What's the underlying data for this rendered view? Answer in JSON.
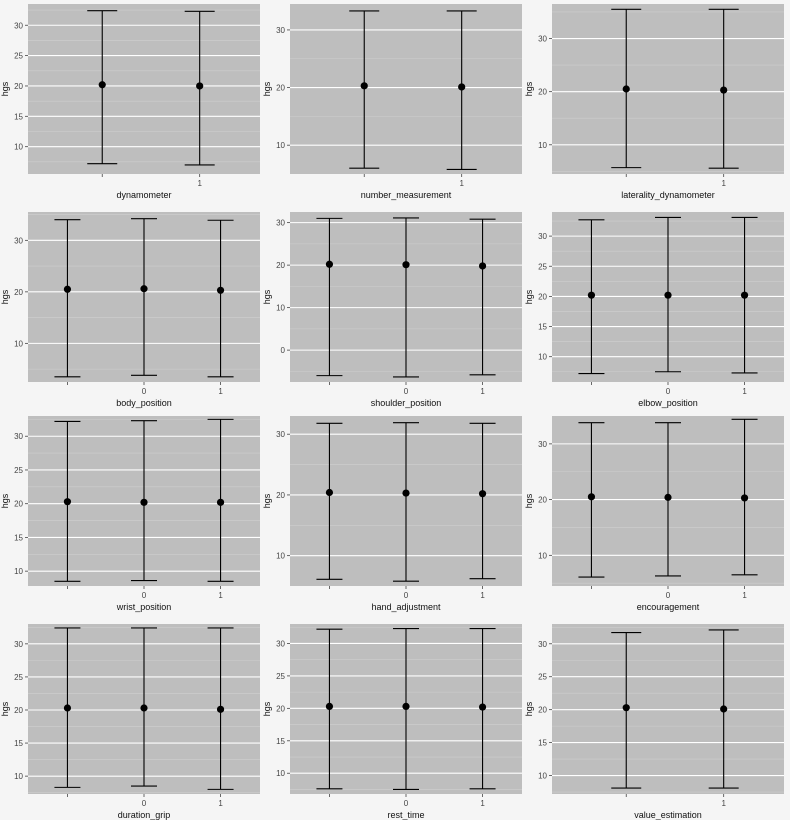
{
  "chart_data": [
    {
      "type": "errorbar",
      "xlabel": "dynamometer",
      "ylabel": "hgs",
      "categories": [
        "",
        "1"
      ],
      "ylim": [
        5.5,
        33.5
      ],
      "yticks": [
        "10",
        "15",
        "20",
        "25",
        "30"
      ],
      "means": [
        20.2,
        20.0
      ],
      "lower": [
        7.2,
        7.0
      ],
      "upper": [
        32.4,
        32.3
      ],
      "grid": true
    },
    {
      "type": "errorbar",
      "xlabel": "number_measurement",
      "ylabel": "hgs",
      "categories": [
        "",
        "1"
      ],
      "ylim": [
        5,
        34.5
      ],
      "yticks": [
        "10",
        "20",
        "30"
      ],
      "means": [
        20.3,
        20.1
      ],
      "lower": [
        6.0,
        5.8
      ],
      "upper": [
        33.3,
        33.3
      ],
      "grid": true
    },
    {
      "type": "errorbar",
      "xlabel": "laterality_dynamometer",
      "ylabel": "hgs",
      "categories": [
        "",
        "1"
      ],
      "ylim": [
        4.5,
        36.5
      ],
      "yticks": [
        "10",
        "20",
        "30"
      ],
      "means": [
        20.5,
        20.3
      ],
      "lower": [
        5.7,
        5.6
      ],
      "upper": [
        35.5,
        35.5
      ],
      "grid": true
    },
    {
      "type": "errorbar",
      "xlabel": "body_position",
      "ylabel": "hgs",
      "categories": [
        "",
        "0",
        "1"
      ],
      "ylim": [
        2.5,
        35.5
      ],
      "yticks": [
        "10",
        "20",
        "30"
      ],
      "means": [
        20.5,
        20.6,
        20.3
      ],
      "lower": [
        3.5,
        3.8,
        3.5
      ],
      "upper": [
        34.0,
        34.2,
        33.9
      ],
      "grid": true
    },
    {
      "type": "errorbar",
      "xlabel": "shoulder_position",
      "ylabel": "hgs",
      "categories": [
        "",
        "0",
        "1"
      ],
      "ylim": [
        -7.5,
        32.5
      ],
      "yticks": [
        "0",
        "10",
        "20",
        "30"
      ],
      "means": [
        20.2,
        20.1,
        19.8
      ],
      "lower": [
        -6.0,
        -6.3,
        -5.8
      ],
      "upper": [
        31.0,
        31.1,
        30.8
      ],
      "grid": true
    },
    {
      "type": "errorbar",
      "xlabel": "elbow_position",
      "ylabel": "hgs",
      "categories": [
        "",
        "0",
        "1"
      ],
      "ylim": [
        5.8,
        34
      ],
      "yticks": [
        "10",
        "15",
        "20",
        "25",
        "30"
      ],
      "means": [
        20.2,
        20.2,
        20.2
      ],
      "lower": [
        7.2,
        7.5,
        7.3
      ],
      "upper": [
        32.7,
        33.1,
        33.1
      ],
      "grid": true
    },
    {
      "type": "errorbar",
      "xlabel": "wrist_position",
      "ylabel": "hgs",
      "categories": [
        "",
        "0",
        "1"
      ],
      "ylim": [
        7.8,
        33
      ],
      "yticks": [
        "10",
        "15",
        "20",
        "25",
        "30"
      ],
      "means": [
        20.3,
        20.2,
        20.2
      ],
      "lower": [
        8.5,
        8.6,
        8.5
      ],
      "upper": [
        32.2,
        32.3,
        32.5
      ],
      "grid": true
    },
    {
      "type": "errorbar",
      "xlabel": "hand_adjustment",
      "ylabel": "hgs",
      "categories": [
        "",
        "0",
        "1"
      ],
      "ylim": [
        5,
        33
      ],
      "yticks": [
        "10",
        "20",
        "30"
      ],
      "means": [
        20.4,
        20.3,
        20.2
      ],
      "lower": [
        6.1,
        5.8,
        6.2
      ],
      "upper": [
        31.8,
        31.9,
        31.8
      ],
      "grid": true
    },
    {
      "type": "errorbar",
      "xlabel": "encouragement",
      "ylabel": "hgs",
      "categories": [
        "",
        "0",
        "1"
      ],
      "ylim": [
        4.5,
        35
      ],
      "yticks": [
        "10",
        "20",
        "30"
      ],
      "means": [
        20.5,
        20.4,
        20.3
      ],
      "lower": [
        6.1,
        6.3,
        6.5
      ],
      "upper": [
        33.8,
        33.8,
        34.4
      ],
      "grid": true
    },
    {
      "type": "errorbar",
      "xlabel": "duration_grip",
      "ylabel": "hgs",
      "categories": [
        "",
        "0",
        "1"
      ],
      "ylim": [
        7.3,
        33
      ],
      "yticks": [
        "10",
        "15",
        "20",
        "25",
        "30"
      ],
      "means": [
        20.3,
        20.3,
        20.1
      ],
      "lower": [
        8.3,
        8.5,
        8.0
      ],
      "upper": [
        32.4,
        32.4,
        32.4
      ],
      "grid": true
    },
    {
      "type": "errorbar",
      "xlabel": "rest_time",
      "ylabel": "hgs",
      "categories": [
        "",
        "0",
        "1"
      ],
      "ylim": [
        6.8,
        33
      ],
      "yticks": [
        "10",
        "15",
        "20",
        "25",
        "30"
      ],
      "means": [
        20.3,
        20.3,
        20.2
      ],
      "lower": [
        7.6,
        7.5,
        7.6
      ],
      "upper": [
        32.2,
        32.3,
        32.3
      ],
      "grid": true
    },
    {
      "type": "errorbar",
      "xlabel": "value_estimation",
      "ylabel": "hgs",
      "categories": [
        "",
        "1"
      ],
      "ylim": [
        7.2,
        33
      ],
      "yticks": [
        "10",
        "15",
        "20",
        "25",
        "30"
      ],
      "means": [
        20.3,
        20.1
      ],
      "lower": [
        8.1,
        8.1
      ],
      "upper": [
        31.7,
        32.1
      ],
      "grid": true
    }
  ],
  "colors": {
    "page_background": "#f5f5f5",
    "panel_background": "#bebebe",
    "grid_major": "#ffffff",
    "grid_minor": "#cfcfcf",
    "marks": "#000000",
    "axis_text": "#444444",
    "label_text": "#111111"
  }
}
